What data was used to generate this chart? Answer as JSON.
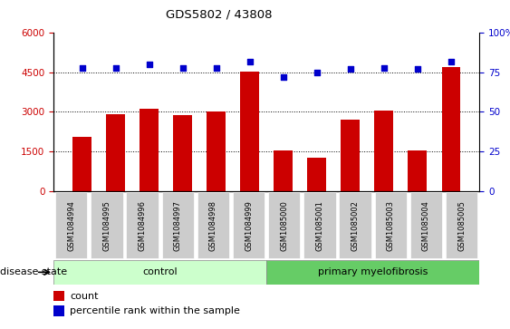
{
  "title": "GDS5802 / 43808",
  "samples": [
    "GSM1084994",
    "GSM1084995",
    "GSM1084996",
    "GSM1084997",
    "GSM1084998",
    "GSM1084999",
    "GSM1085000",
    "GSM1085001",
    "GSM1085002",
    "GSM1085003",
    "GSM1085004",
    "GSM1085005"
  ],
  "counts": [
    2050,
    2900,
    3120,
    2870,
    3020,
    4520,
    1530,
    1270,
    2720,
    3060,
    1530,
    4700
  ],
  "percentiles": [
    78,
    78,
    80,
    78,
    78,
    82,
    72,
    75,
    77,
    78,
    77,
    82
  ],
  "bar_color": "#cc0000",
  "dot_color": "#0000cc",
  "ylim_left": [
    0,
    6000
  ],
  "ylim_right": [
    0,
    100
  ],
  "yticks_left": [
    0,
    1500,
    3000,
    4500,
    6000
  ],
  "yticks_right": [
    0,
    25,
    50,
    75,
    100
  ],
  "grid_values": [
    1500,
    3000,
    4500
  ],
  "control_samples": 6,
  "control_label": "control",
  "disease_label": "primary myelofibrosis",
  "disease_state_label": "disease state",
  "control_color": "#ccffcc",
  "disease_color": "#66cc66",
  "left_tick_color": "#cc0000",
  "right_tick_color": "#0000cc",
  "legend_count_label": "count",
  "legend_pct_label": "percentile rank within the sample",
  "background_color": "#ffffff",
  "tick_bg_color": "#cccccc",
  "bar_width": 0.55
}
